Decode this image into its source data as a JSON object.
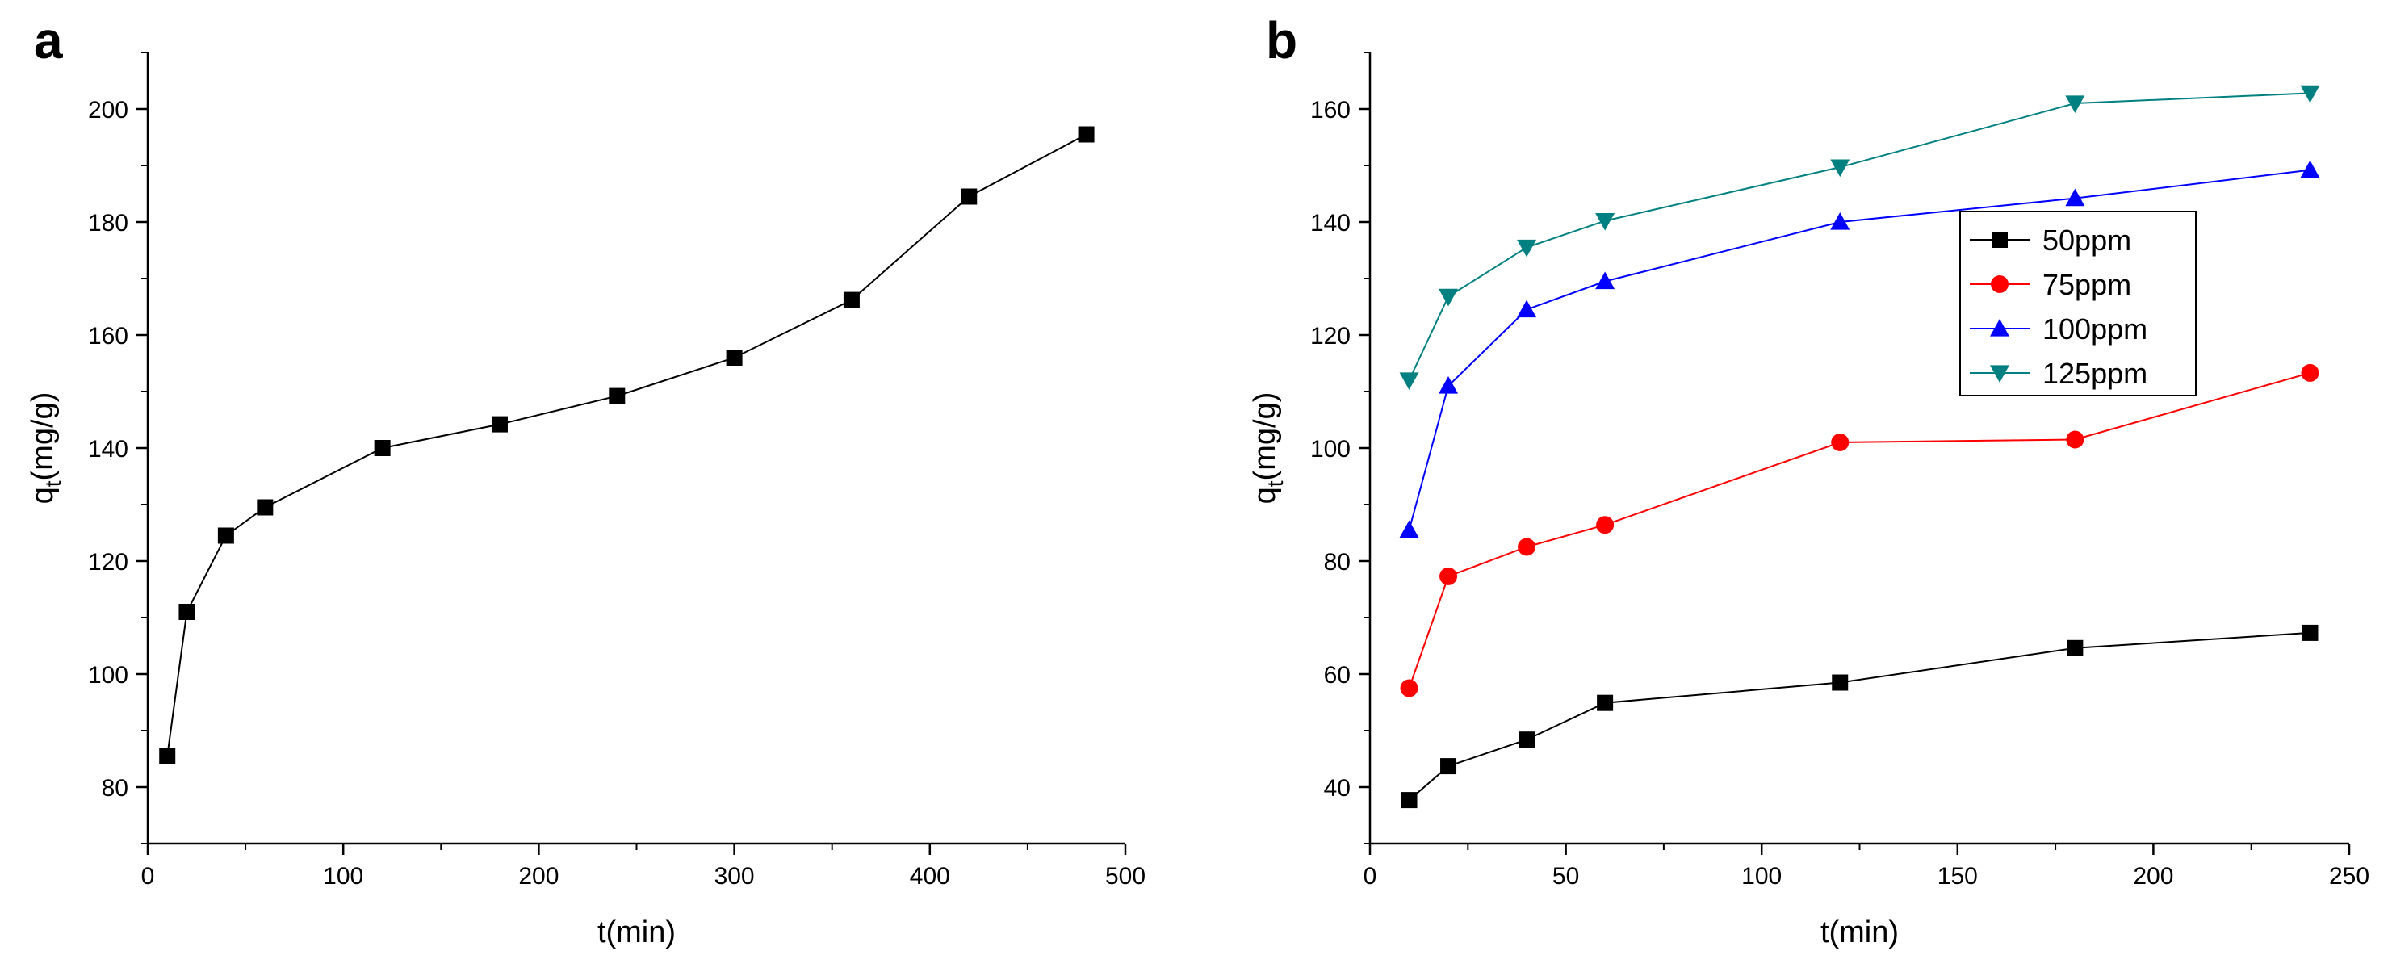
{
  "chart_data": [
    {
      "panel": "a",
      "type": "line",
      "xlabel": "t(min)",
      "ylabel": {
        "main": "q",
        "sub": "t",
        "rest": "(mg/g)"
      },
      "xlim": [
        0,
        500
      ],
      "ylim": [
        70,
        210
      ],
      "xticks": [
        0,
        100,
        200,
        300,
        400,
        500
      ],
      "yticks": [
        80,
        100,
        120,
        140,
        160,
        180,
        200
      ],
      "series": [
        {
          "name": "",
          "color": "#000000",
          "marker": "square",
          "x": [
            10,
            20,
            40,
            60,
            120,
            180,
            240,
            300,
            360,
            420,
            480
          ],
          "y": [
            85.5,
            111,
            124.5,
            129.5,
            140,
            144.2,
            149.2,
            156,
            166.2,
            184.5,
            195.5
          ]
        }
      ]
    },
    {
      "panel": "b",
      "type": "line",
      "xlabel": "t(min)",
      "ylabel": {
        "main": "q",
        "sub": "t",
        "rest": "(mg/g)"
      },
      "xlim": [
        0,
        250
      ],
      "ylim": [
        30,
        170
      ],
      "xticks": [
        0,
        50,
        100,
        150,
        200,
        250
      ],
      "yticks": [
        40,
        60,
        80,
        100,
        120,
        140,
        160
      ],
      "legend_position": "top-right",
      "series": [
        {
          "name": "50ppm",
          "color": "#000000",
          "marker": "square",
          "x": [
            10,
            20,
            40,
            60,
            120,
            180,
            240
          ],
          "y": [
            37.7,
            43.7,
            48.4,
            54.9,
            58.5,
            64.6,
            67.3
          ]
        },
        {
          "name": "75ppm",
          "color": "#ff0000",
          "marker": "circle",
          "x": [
            10,
            20,
            40,
            60,
            120,
            180,
            240
          ],
          "y": [
            57.5,
            77.3,
            82.5,
            86.4,
            101,
            101.5,
            113.3
          ]
        },
        {
          "name": "100ppm",
          "color": "#0000ff",
          "marker": "triangle-up",
          "x": [
            10,
            20,
            40,
            60,
            120,
            180,
            240
          ],
          "y": [
            85.5,
            111,
            124.5,
            129.5,
            140,
            144.2,
            149.2
          ]
        },
        {
          "name": "125ppm",
          "color": "#008080",
          "marker": "triangle-down",
          "x": [
            10,
            20,
            40,
            60,
            120,
            180,
            240
          ],
          "y": [
            112,
            126.8,
            135.5,
            140.2,
            149.7,
            161,
            162.8
          ]
        }
      ]
    }
  ]
}
